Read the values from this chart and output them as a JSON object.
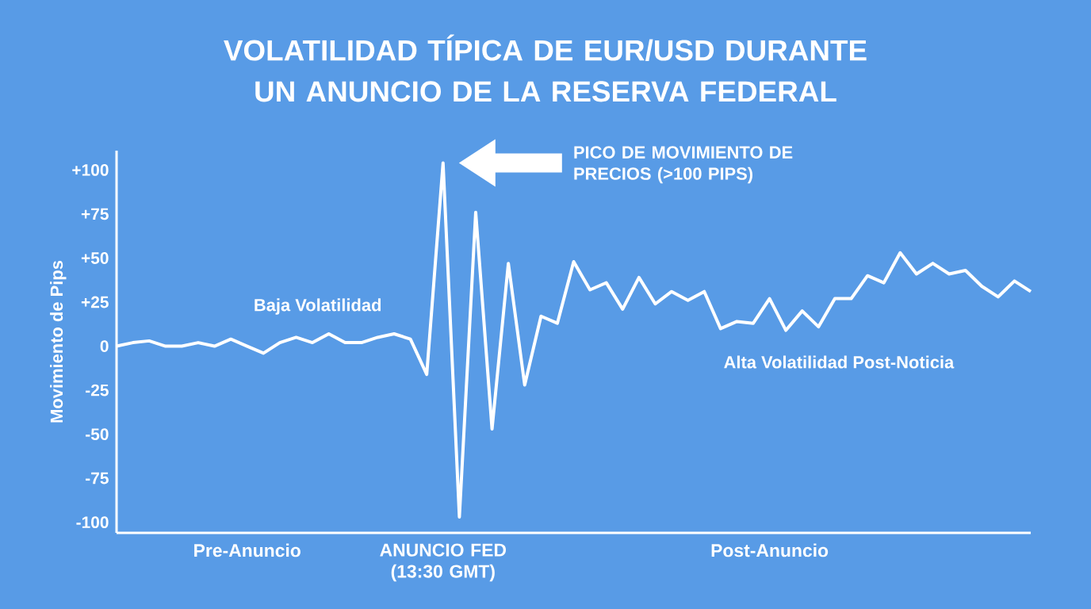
{
  "chart_data": {
    "type": "line",
    "title": "VOLATILIDAD TÍPICA DE EUR/USD DURANTE UN ANUNCIO DE LA RESERVA FEDERAL",
    "ylabel": "Movimiento de Pips",
    "categories": [
      null,
      null,
      null,
      null,
      null,
      null,
      null,
      null,
      "Pre-Anuncio",
      null,
      null,
      null,
      null,
      null,
      null,
      null,
      null,
      null,
      null,
      null,
      "ANUNCIO FED (13:30 GMT)",
      null,
      null,
      null,
      null,
      null,
      null,
      null,
      null,
      null,
      null,
      null,
      null,
      null,
      null,
      null,
      null,
      null,
      null,
      null,
      "Post-Anuncio",
      null,
      null,
      null,
      null,
      null,
      null,
      null,
      null,
      null,
      null,
      null,
      null,
      null,
      null,
      null,
      null
    ],
    "series": [
      {
        "color": "#ffffff",
        "values": [
          0,
          2,
          3,
          0,
          0,
          2,
          0,
          4,
          0,
          -4,
          2,
          5,
          2,
          7,
          2,
          2,
          5,
          7,
          4,
          -16,
          104,
          -97,
          76,
          -47,
          47,
          -22,
          17,
          13,
          48,
          32,
          36,
          21,
          39,
          24,
          31,
          26,
          31,
          10,
          14,
          13,
          27,
          9,
          20,
          11,
          27,
          27,
          40,
          36,
          53,
          41,
          47,
          41,
          43,
          34,
          28,
          37,
          31
        ]
      }
    ],
    "ylim": [
      -106,
      111
    ],
    "yticks": [
      {
        "value": -100,
        "label": "-100"
      },
      {
        "value": -75,
        "label": "-75"
      },
      {
        "value": -50,
        "label": "-50"
      },
      {
        "value": -25,
        "label": "-25"
      },
      0,
      {
        "value": 25,
        "label": "+25"
      },
      {
        "value": 50,
        "label": "+50"
      },
      {
        "value": 75,
        "label": "+75"
      },
      {
        "value": 100,
        "label": "+100"
      }
    ],
    "annotations": [
      "Baja Volatilidad",
      "PICO DE MOVIMIENTO DE PRECIOS (>100 PIPS)",
      "Alta Volatilidad Post-Noticia"
    ]
  }
}
